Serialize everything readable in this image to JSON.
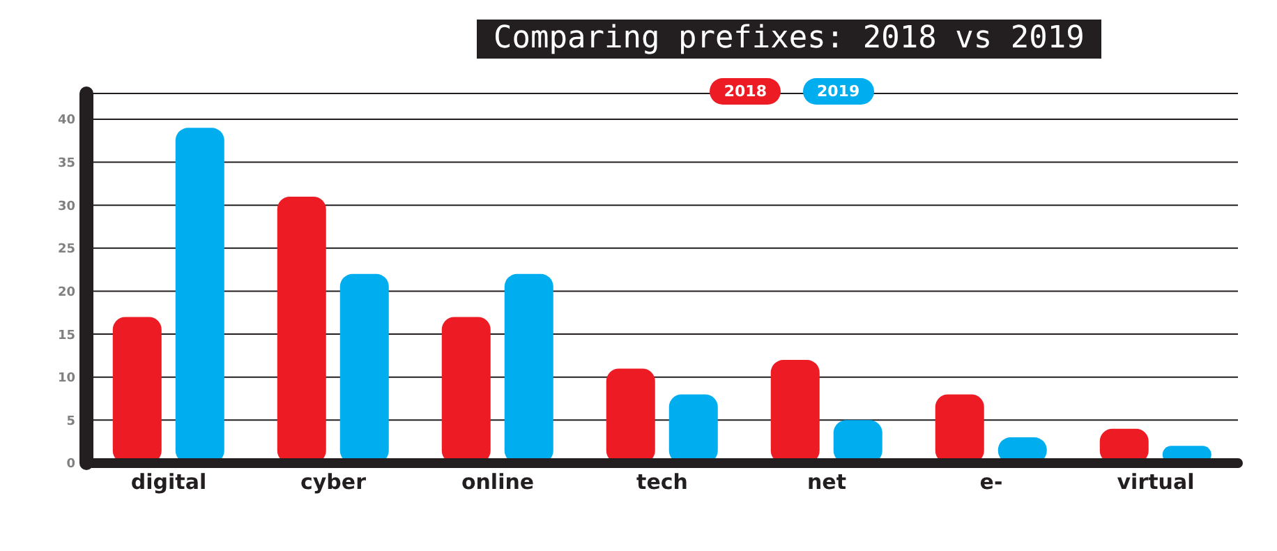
{
  "chart_data": {
    "type": "bar",
    "title": "Comparing prefixes: 2018 vs 2019",
    "categories": [
      "digital",
      "cyber",
      "online",
      "tech",
      "net",
      "e-",
      "virtual"
    ],
    "series": [
      {
        "name": "2018",
        "color": "#ed1c24",
        "values": [
          17,
          31,
          17,
          11,
          12,
          8,
          4
        ]
      },
      {
        "name": "2019",
        "color": "#00aeef",
        "values": [
          39,
          22,
          22,
          8,
          5,
          3,
          2
        ]
      }
    ],
    "ylim": [
      0,
      43
    ],
    "yticks": [
      0,
      5,
      10,
      15,
      20,
      25,
      30,
      35,
      40
    ],
    "grid": "y",
    "legend": "top"
  }
}
